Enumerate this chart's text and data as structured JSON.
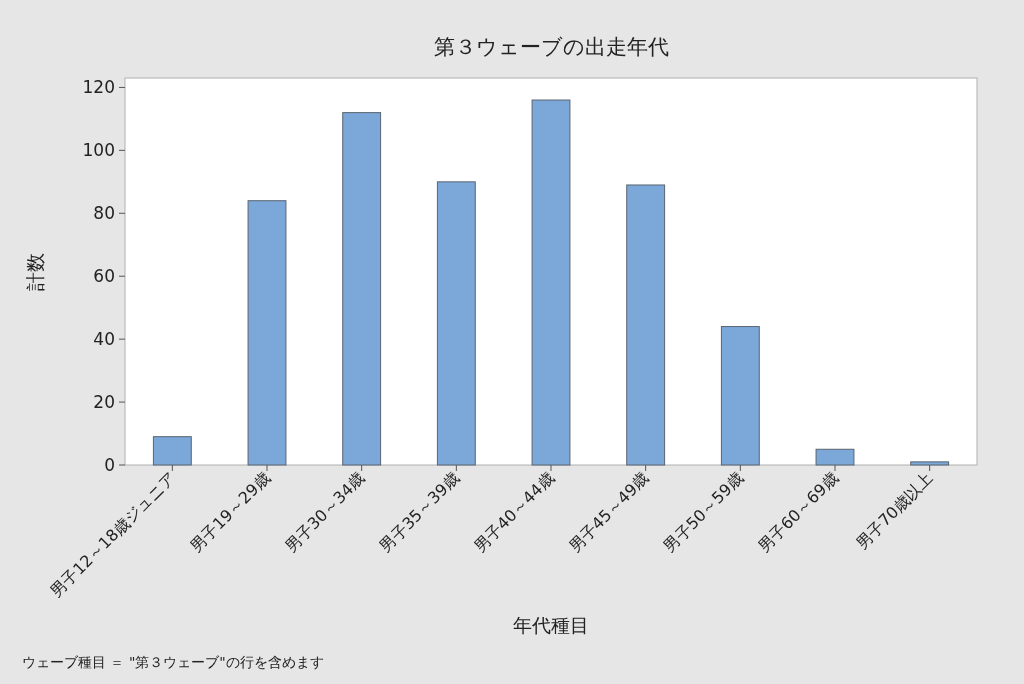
{
  "chart_data": {
    "type": "bar",
    "title": "第３ウェーブの出走年代",
    "xlabel": "年代種目",
    "ylabel": "計数",
    "categories": [
      "男子12～18歳ジュニア",
      "男子19～29歳",
      "男子30～34歳",
      "男子35～39歳",
      "男子40～44歳",
      "男子45～49歳",
      "男子50～59歳",
      "男子60～69歳",
      "男子70歳以上"
    ],
    "values": [
      9,
      84,
      112,
      90,
      116,
      89,
      44,
      5,
      1
    ],
    "color": "#7ba7d9",
    "ylim": [
      0,
      123
    ],
    "yticks": [
      0,
      20,
      40,
      60,
      80,
      100,
      120
    ],
    "grid": false,
    "annotations": [
      "ウェーブ種目 ＝ \"第３ウェーブ\"の行を含めます"
    ]
  }
}
